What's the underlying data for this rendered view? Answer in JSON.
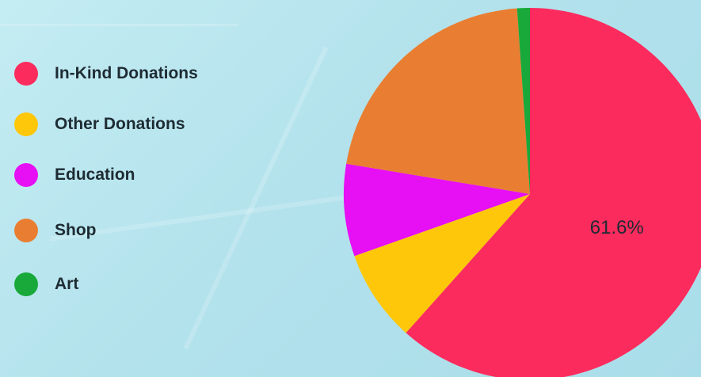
{
  "chart_data": {
    "type": "pie",
    "legend_position": "left",
    "slices": [
      {
        "name": "In-Kind Donations",
        "value": 61.6,
        "color": "#fc2b5d",
        "label": "61.6%"
      },
      {
        "name": "Other Donations",
        "value": 8.0,
        "color": "#fec70a",
        "label": ""
      },
      {
        "name": "Education",
        "value": 8.0,
        "color": "#e70ff3",
        "label": ""
      },
      {
        "name": "Shop",
        "value": 21.3,
        "color": "#e97e32",
        "label": ""
      },
      {
        "name": "Art",
        "value": 1.1,
        "color": "#18a93a",
        "label": ""
      }
    ]
  }
}
